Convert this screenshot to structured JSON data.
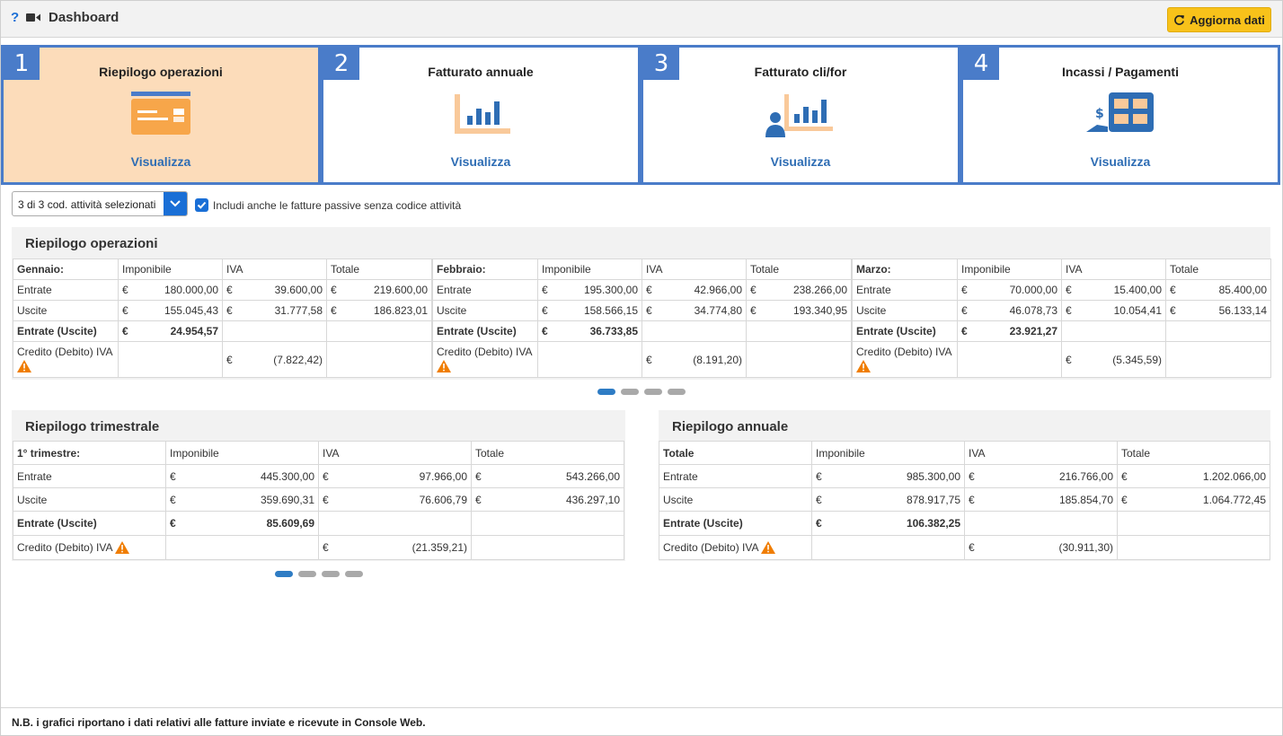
{
  "header": {
    "help": "?",
    "title": "Dashboard",
    "refresh_label": "Aggiorna dati"
  },
  "cards": [
    {
      "num": "1",
      "title": "Riepilogo operazioni",
      "link": "Visualizza"
    },
    {
      "num": "2",
      "title": "Fatturato annuale",
      "link": "Visualizza"
    },
    {
      "num": "3",
      "title": "Fatturato cli/for",
      "link": "Visualizza"
    },
    {
      "num": "4",
      "title": "Incassi / Pagamenti",
      "link": "Visualizza"
    }
  ],
  "filters": {
    "select_value": "3 di 3 cod. attività selezionati",
    "checkbox_label": "Includi anche le fatture passive senza codice attività"
  },
  "operations": {
    "title": "Riepilogo operazioni",
    "col_imponibile": "Imponibile",
    "col_iva": "IVA",
    "col_totale": "Totale",
    "row_entrate": "Entrate",
    "row_uscite": "Uscite",
    "row_saldo": "Entrate (Uscite)",
    "row_credito": "Credito (Debito) IVA",
    "currency": "€",
    "months": [
      {
        "name": "Gennaio:",
        "entrate": [
          "180.000,00",
          "39.600,00",
          "219.600,00"
        ],
        "uscite": [
          "155.045,43",
          "31.777,58",
          "186.823,01"
        ],
        "saldo": "24.954,57",
        "credito": "(7.822,42)"
      },
      {
        "name": "Febbraio:",
        "entrate": [
          "195.300,00",
          "42.966,00",
          "238.266,00"
        ],
        "uscite": [
          "158.566,15",
          "34.774,80",
          "193.340,95"
        ],
        "saldo": "36.733,85",
        "credito": "(8.191,20)"
      },
      {
        "name": "Marzo:",
        "entrate": [
          "70.000,00",
          "15.400,00",
          "85.400,00"
        ],
        "uscite": [
          "46.078,73",
          "10.054,41",
          "56.133,14"
        ],
        "saldo": "23.921,27",
        "credito": "(5.345,59)"
      }
    ]
  },
  "quarterly": {
    "title": "Riepilogo trimestrale",
    "period": "1° trimestre:",
    "entrate": [
      "445.300,00",
      "97.966,00",
      "543.266,00"
    ],
    "uscite": [
      "359.690,31",
      "76.606,79",
      "436.297,10"
    ],
    "saldo": "85.609,69",
    "credito": "(21.359,21)"
  },
  "annual": {
    "title": "Riepilogo annuale",
    "period": "Totale",
    "entrate": [
      "985.300,00",
      "216.766,00",
      "1.202.066,00"
    ],
    "uscite": [
      "878.917,75",
      "185.854,70",
      "1.064.772,45"
    ],
    "saldo": "106.382,25",
    "credito": "(30.911,30)"
  },
  "footer": {
    "note": "N.B. i grafici riportano i dati relativi alle fatture inviate e ricevute in Console Web."
  },
  "colors": {
    "accent": "#4a7cc9",
    "active_card": "#fcdcba",
    "refresh_button": "#f8c21a",
    "link": "#2e6db4",
    "warning": "#f07d00"
  }
}
